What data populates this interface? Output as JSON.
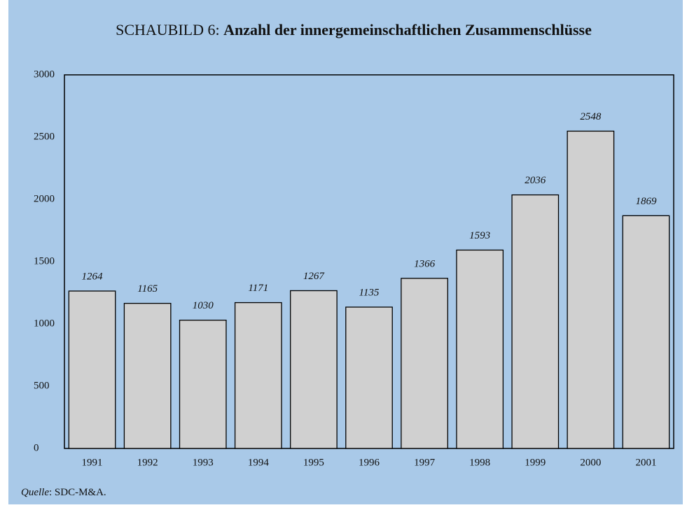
{
  "chart_data": {
    "type": "bar",
    "title": [
      "SCHAUBILD 6:",
      "Anzahl der innergemeinschaftlichen Zusammenschlüsse"
    ],
    "categories": [
      "1991",
      "1992",
      "1993",
      "1994",
      "1995",
      "1996",
      "1997",
      "1998",
      "1999",
      "2000",
      "2001"
    ],
    "values": [
      1264,
      1165,
      1030,
      1171,
      1267,
      1135,
      1366,
      1593,
      2036,
      2548,
      1869
    ],
    "color": "#d0d0d0",
    "ylim": [
      0,
      3000
    ],
    "yticks": [
      0,
      500,
      1000,
      1500,
      2000,
      2500,
      3000
    ],
    "grid": false,
    "source": [
      "Quelle",
      ": SDC-M&A."
    ]
  }
}
